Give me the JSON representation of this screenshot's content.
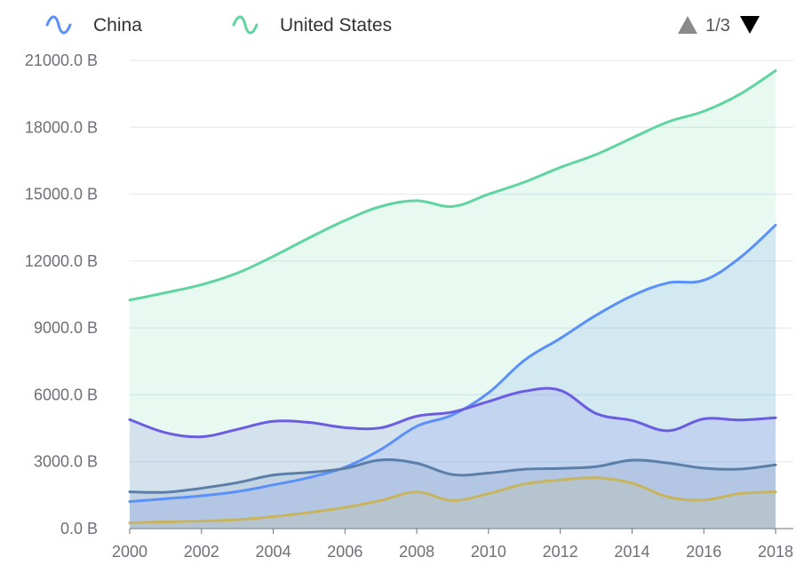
{
  "chart_data": {
    "type": "area",
    "y_unit_suffix": " B",
    "ylim": [
      0,
      21000
    ],
    "y_ticks": [
      0,
      3000,
      6000,
      9000,
      12000,
      15000,
      18000,
      21000
    ],
    "y_tick_labels": [
      "0.0 B",
      "3000.0 B",
      "6000.0 B",
      "9000.0 B",
      "12000.0 B",
      "15000.0 B",
      "18000.0 B",
      "21000.0 B"
    ],
    "x_ticks": [
      2000,
      2002,
      2004,
      2006,
      2008,
      2010,
      2012,
      2014,
      2016,
      2018
    ],
    "x_tick_labels": [
      "2000",
      "2002",
      "2004",
      "2006",
      "2008",
      "2010",
      "2012",
      "2014",
      "2016",
      "2018"
    ],
    "x": [
      2000,
      2001,
      2002,
      2003,
      2004,
      2005,
      2006,
      2007,
      2008,
      2009,
      2010,
      2011,
      2012,
      2013,
      2014,
      2015,
      2016,
      2017,
      2018
    ],
    "grid": true,
    "legend_position": "top",
    "series": [
      {
        "name": "United States",
        "color": "#5fd4a0",
        "legend_visible": true,
        "values": [
          10250,
          10580,
          10940,
          11460,
          12210,
          13040,
          13820,
          14450,
          14710,
          14450,
          15000,
          15540,
          16200,
          16780,
          17520,
          18240,
          18720,
          19480,
          20540
        ]
      },
      {
        "name": "China",
        "color": "#5b8ff9",
        "legend_visible": true,
        "values": [
          1210,
          1340,
          1470,
          1660,
          1960,
          2290,
          2750,
          3550,
          4590,
          5100,
          6090,
          7550,
          8530,
          9570,
          10440,
          11020,
          11140,
          12140,
          13610
        ]
      },
      {
        "name": "",
        "color": "#6c5de0",
        "legend_visible": false,
        "values": [
          4890,
          4300,
          4120,
          4450,
          4810,
          4760,
          4530,
          4520,
          5040,
          5230,
          5700,
          6160,
          6200,
          5160,
          4850,
          4390,
          4920,
          4870,
          4970
        ]
      },
      {
        "name": "",
        "color": "#5b7fa8",
        "legend_visible": false,
        "values": [
          1650,
          1630,
          1810,
          2060,
          2400,
          2520,
          2700,
          3080,
          2930,
          2420,
          2490,
          2660,
          2700,
          2780,
          3070,
          2940,
          2710,
          2670,
          2860
        ]
      },
      {
        "name": "",
        "color": "#c8b45c",
        "legend_visible": false,
        "values": [
          260,
          300,
          340,
          400,
          540,
          720,
          950,
          1260,
          1640,
          1260,
          1570,
          2000,
          2180,
          2280,
          2040,
          1420,
          1280,
          1570,
          1650
        ]
      }
    ],
    "pager": {
      "text": "1/3"
    }
  }
}
